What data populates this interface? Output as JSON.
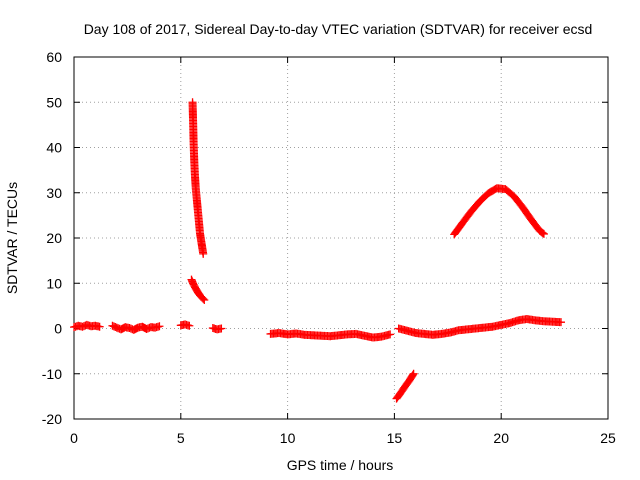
{
  "chart_data": {
    "type": "scatter",
    "title": "Day 108 of 2017, Sidereal Day-to-day VTEC variation (SDTVAR) for receiver ecsd",
    "xlabel": "GPS time / hours",
    "ylabel": "SDTVAR / TECUs",
    "xlim": [
      0,
      25
    ],
    "ylim": [
      -20,
      60
    ],
    "xticks": [
      0,
      5,
      10,
      15,
      20,
      25
    ],
    "yticks": [
      -20,
      -10,
      0,
      10,
      20,
      30,
      40,
      50,
      60
    ],
    "grid": true,
    "marker": "+",
    "color": "#ff0000",
    "series": [
      {
        "name": "SDTVAR",
        "segments": [
          {
            "x": [
              0.0,
              0.2,
              0.4,
              0.6,
              0.8,
              1.0,
              1.2
            ],
            "y": [
              0.3,
              0.6,
              0.4,
              0.8,
              0.5,
              0.6,
              0.4
            ]
          },
          {
            "x": [
              1.8,
              2.0,
              2.2,
              2.4,
              2.6,
              2.8,
              3.0,
              3.2,
              3.4,
              3.6,
              3.8,
              4.0
            ],
            "y": [
              0.6,
              0.2,
              -0.2,
              0.3,
              0.1,
              -0.3,
              0.2,
              0.4,
              -0.1,
              0.3,
              0.2,
              0.5
            ]
          },
          {
            "x": [
              5.0,
              5.2,
              5.4
            ],
            "y": [
              0.7,
              0.9,
              0.6
            ]
          },
          {
            "x": [
              6.5,
              6.7,
              6.9
            ],
            "y": [
              0.1,
              -0.2,
              0.0
            ]
          },
          {
            "x": [
              5.55,
              5.58,
              5.6,
              5.63,
              5.66,
              5.7,
              5.74,
              5.78,
              5.82,
              5.86,
              5.9,
              5.95,
              6.0,
              6.05
            ],
            "y": [
              50,
              45,
              41,
              37,
              34,
              31,
              29,
              27,
              25,
              23,
              21,
              19.5,
              18,
              16.5
            ]
          },
          {
            "x": [
              5.5,
              5.6,
              5.7,
              5.8,
              5.9,
              6.0,
              6.1
            ],
            "y": [
              10.8,
              9.7,
              8.8,
              8.0,
              7.3,
              6.8,
              6.3
            ]
          },
          {
            "x": [
              9.2,
              9.6,
              10.0,
              10.4,
              10.8,
              11.2,
              11.6,
              12.0,
              12.4,
              12.8,
              13.2,
              13.6,
              14.0,
              14.4,
              14.8
            ],
            "y": [
              -1.2,
              -1.0,
              -1.3,
              -1.1,
              -1.4,
              -1.5,
              -1.6,
              -1.7,
              -1.5,
              -1.3,
              -1.2,
              -1.6,
              -2.0,
              -1.8,
              -1.3
            ]
          },
          {
            "x": [
              15.1,
              15.3,
              15.5,
              15.7,
              15.9
            ],
            "y": [
              -15.5,
              -14.2,
              -12.8,
              -11.5,
              -10.0
            ]
          },
          {
            "x": [
              15.2,
              15.6,
              16.0,
              16.4,
              16.8,
              17.2,
              17.6,
              18.0,
              18.4,
              18.8,
              19.2,
              19.6,
              20.0,
              20.4,
              20.8,
              21.2,
              21.6,
              22.0,
              22.4,
              22.8
            ],
            "y": [
              0.0,
              -0.5,
              -1.0,
              -1.2,
              -1.4,
              -1.2,
              -0.9,
              -0.4,
              -0.2,
              0.0,
              0.2,
              0.4,
              0.8,
              1.2,
              1.8,
              2.1,
              1.8,
              1.6,
              1.5,
              1.4
            ]
          },
          {
            "x": [
              17.8,
              18.2,
              18.6,
              19.0,
              19.4,
              19.8,
              20.2,
              20.6,
              21.0,
              21.4,
              21.8,
              22.0
            ],
            "y": [
              20.8,
              23.4,
              25.9,
              28.1,
              29.9,
              31.0,
              30.8,
              29.2,
              26.8,
              24.1,
              21.6,
              20.9
            ]
          }
        ]
      }
    ]
  }
}
